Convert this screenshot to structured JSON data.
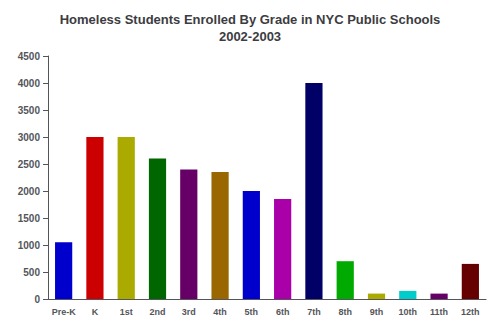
{
  "chart_data": {
    "type": "bar",
    "title": "Homeless Students Enrolled By Grade in NYC Public Schools\n2002-2003",
    "categories": [
      "Pre-K",
      "K",
      "1st",
      "2nd",
      "3rd",
      "4th",
      "5th",
      "6th",
      "7th",
      "8th",
      "9th",
      "10th",
      "11th",
      "12th"
    ],
    "values": [
      1050,
      3000,
      3000,
      2600,
      2400,
      2350,
      2000,
      1850,
      4000,
      700,
      100,
      150,
      100,
      650
    ],
    "colors": [
      "#0000cc",
      "#cc0000",
      "#aaaa00",
      "#006600",
      "#660066",
      "#996600",
      "#0000cc",
      "#aa00aa",
      "#000066",
      "#00aa00",
      "#aaaa00",
      "#00cccc",
      "#660066",
      "#660000"
    ],
    "ylim": [
      0,
      4500
    ],
    "yticks": [
      0,
      500,
      1000,
      1500,
      2000,
      2500,
      3000,
      3500,
      4000,
      4500
    ],
    "grid": false
  }
}
